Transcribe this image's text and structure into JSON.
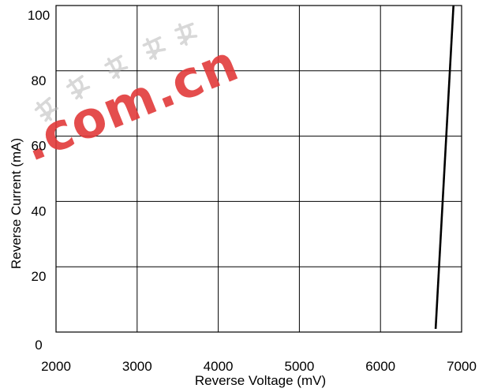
{
  "watermark": {
    "text": ".com.cn",
    "color": "#e23a3a",
    "glyph_color": "#b8b8b8"
  },
  "chart_data": {
    "type": "line",
    "title": "",
    "xlabel": "Reverse Voltage (mV)",
    "ylabel": "Reverse Current (mA)",
    "xlim": [
      2000,
      7000
    ],
    "ylim": [
      0,
      100
    ],
    "xticks": [
      "2000",
      "3000",
      "4000",
      "5000",
      "6000",
      "7000"
    ],
    "yticks": [
      "0",
      "20",
      "40",
      "60",
      "80",
      "100"
    ],
    "grid": true,
    "legend": "none",
    "series": [
      {
        "color": "#000000",
        "x": [
          6680,
          6900
        ],
        "y": [
          1,
          100
        ]
      }
    ]
  }
}
